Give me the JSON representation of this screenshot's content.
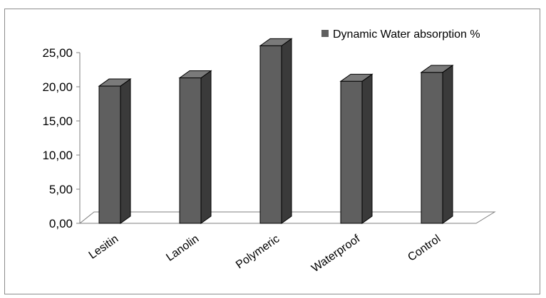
{
  "chart_data": {
    "type": "bar",
    "style": "3d-column",
    "categories": [
      "Lesitin",
      "Lanolin",
      "Polymeric",
      "Waterproof",
      "Control"
    ],
    "series": [
      {
        "name": "Dynamic Water absorption %",
        "values": [
          20.1,
          21.3,
          26.0,
          20.8,
          22.1
        ]
      }
    ],
    "yticks": [
      "0,00",
      "5,00",
      "10,00",
      "15,00",
      "20,00",
      "25,00"
    ],
    "ylim": [
      0,
      25
    ],
    "legend": "top-right",
    "grid": false,
    "colors": {
      "bar_front": "#5f5f5f",
      "bar_side": "#3a3a3a",
      "bar_top": "#7a7a7a",
      "edge": "#000000",
      "floor": "#ffffff",
      "axis": "#7f7f7f"
    }
  }
}
